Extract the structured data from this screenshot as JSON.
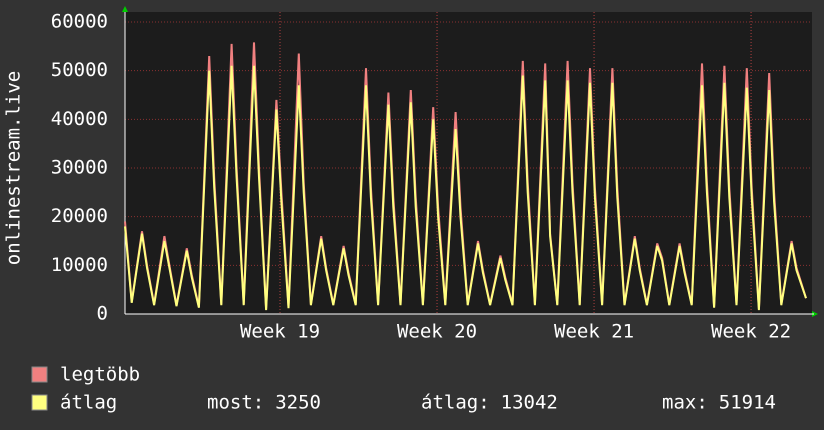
{
  "chart_data": {
    "type": "line",
    "y_label": "onlinestream.live",
    "x": [
      0,
      0.3,
      0.76,
      0.98,
      1.3,
      1.76,
      1.98,
      2.3,
      2.76,
      2.98,
      3.3,
      3.76,
      3.98,
      4.3,
      4.76,
      4.98,
      5.3,
      5.76,
      5.98,
      6.3,
      6.76,
      6.98,
      7.3,
      7.76,
      7.98,
      8.3,
      8.76,
      8.98,
      9.3,
      9.76,
      9.98,
      10.3,
      10.76,
      10.98,
      11.3,
      11.76,
      11.98,
      12.3,
      12.76,
      12.98,
      13.3,
      13.76,
      13.98,
      14.3,
      14.76,
      14.98,
      15.3,
      15.76,
      15.98,
      16.3,
      16.76,
      16.98,
      17.3,
      17.76,
      17.98,
      18.3,
      18.76,
      18.98,
      19.3,
      19.76,
      19.98,
      20.3,
      20.76,
      20.98,
      21.3,
      21.76,
      21.98,
      22.3,
      22.76,
      22.98,
      23.3,
      23.76,
      23.98,
      24.3,
      24.76,
      24.98,
      25.3,
      25.76,
      25.98,
      26.3,
      26.76,
      26.98,
      27.3,
      27.76,
      27.98,
      28.3,
      28.76,
      28.98,
      29.3,
      29.76,
      29.98,
      30.4
    ],
    "series": [
      {
        "name": "legtöbb",
        "color": "#f08080",
        "values": [
          19000,
          2500,
          17000,
          10000,
          2000,
          16000,
          10000,
          1800,
          13500,
          8000,
          1500,
          53000,
          28000,
          2000,
          55500,
          30000,
          2000,
          55800,
          30000,
          1000,
          44000,
          25000,
          1500,
          53500,
          27000,
          2000,
          16000,
          9500,
          2000,
          14000,
          8500,
          2000,
          50500,
          26000,
          2000,
          45500,
          24000,
          2000,
          46000,
          24000,
          2000,
          42500,
          22000,
          2000,
          41500,
          22000,
          2000,
          15000,
          9000,
          2000,
          12000,
          7500,
          2000,
          52000,
          27000,
          2000,
          51500,
          16500,
          2000,
          52000,
          27000,
          2000,
          50500,
          26000,
          2000,
          50500,
          26000,
          2000,
          16000,
          9500,
          2000,
          14500,
          11500,
          2000,
          14500,
          9000,
          2000,
          51500,
          27000,
          1500,
          51000,
          26000,
          2000,
          50500,
          26000,
          1000,
          49500,
          25000,
          2000,
          15000,
          9500,
          3250
        ]
      },
      {
        "name": "átlag",
        "color": "#ffff80",
        "values": [
          18000,
          2300,
          16500,
          9500,
          1800,
          15000,
          9500,
          1600,
          13000,
          7500,
          1300,
          50000,
          26000,
          1800,
          51000,
          28000,
          1800,
          51000,
          28000,
          800,
          42000,
          23000,
          1200,
          47000,
          25000,
          1800,
          15500,
          9000,
          1800,
          13500,
          8000,
          1800,
          47000,
          24000,
          1800,
          43000,
          22000,
          1800,
          43500,
          22000,
          1800,
          40000,
          20000,
          1800,
          38000,
          20000,
          1800,
          14500,
          8500,
          1800,
          11500,
          7000,
          1800,
          49000,
          25000,
          1800,
          48000,
          16000,
          1800,
          48000,
          25000,
          1800,
          47500,
          24000,
          1800,
          47500,
          24000,
          1800,
          15500,
          9000,
          1800,
          14000,
          11000,
          1800,
          14000,
          8500,
          1800,
          47000,
          25000,
          1300,
          47500,
          24000,
          1800,
          46500,
          24000,
          800,
          46000,
          23000,
          1800,
          14500,
          9000,
          3250
        ]
      }
    ],
    "xlim": [
      0,
      30.67
    ],
    "xticks": [
      {
        "value": 6.92,
        "label": "Week 19"
      },
      {
        "value": 13.93,
        "label": "Week 20"
      },
      {
        "value": 20.94,
        "label": "Week 21"
      },
      {
        "value": 27.95,
        "label": "Week 22"
      }
    ],
    "ylim": [
      0,
      60000
    ],
    "yticks": [
      0,
      10000,
      20000,
      30000,
      40000,
      50000,
      60000
    ],
    "grid": true,
    "stats": [
      {
        "label": "most:",
        "value": 3250
      },
      {
        "label": "átlag:",
        "value": 13042
      },
      {
        "label": "max:",
        "value": 51914
      }
    ]
  }
}
